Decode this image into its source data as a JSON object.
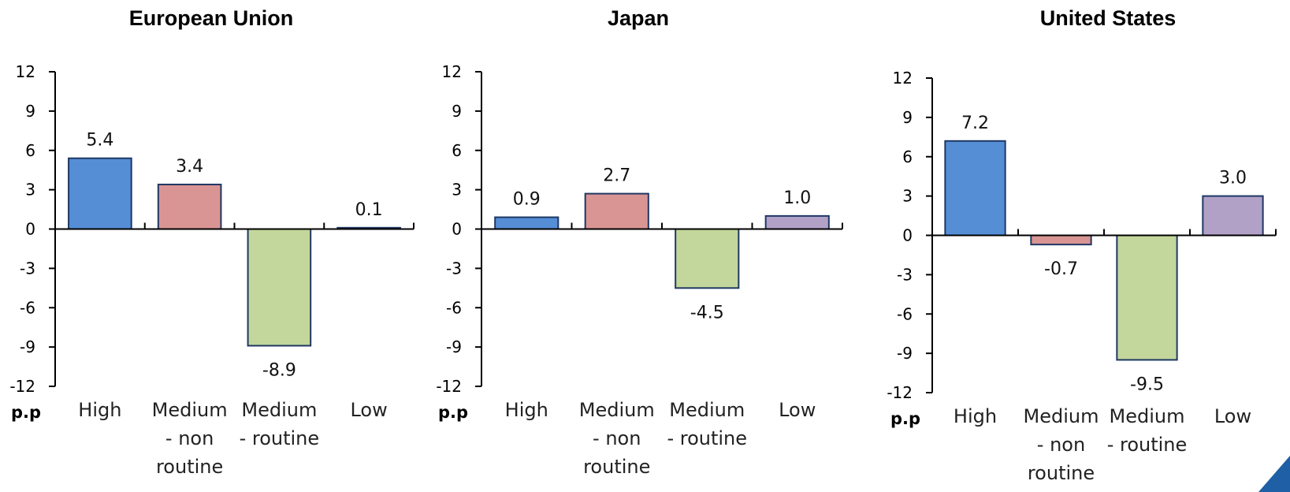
{
  "chart_data": [
    {
      "type": "bar",
      "title": "European Union",
      "unit_label": "p.p",
      "categories": [
        "High",
        "Medium - non routine",
        "Medium - routine",
        "Low"
      ],
      "category_lines": [
        [
          "High"
        ],
        [
          "Medium",
          "- non",
          "routine"
        ],
        [
          "Medium",
          "- routine"
        ],
        [
          "Low"
        ]
      ],
      "values": [
        5.4,
        3.4,
        -8.9,
        0.1
      ],
      "value_labels": [
        "5.4",
        "3.4",
        "-8.9",
        "0.1"
      ],
      "ylim": [
        -12,
        12
      ],
      "yticks": [
        12,
        9,
        6,
        3,
        0,
        -3,
        -6,
        -9,
        -12
      ],
      "grid": false,
      "legend": "none"
    },
    {
      "type": "bar",
      "title": "Japan",
      "unit_label": "p.p",
      "categories": [
        "High",
        "Medium - non routine",
        "Medium - routine",
        "Low"
      ],
      "category_lines": [
        [
          "High"
        ],
        [
          "Medium",
          "- non",
          "routine"
        ],
        [
          "Medium",
          "- routine"
        ],
        [
          "Low"
        ]
      ],
      "values": [
        0.9,
        2.7,
        -4.5,
        1.0
      ],
      "value_labels": [
        "0.9",
        "2.7",
        "-4.5",
        "1.0"
      ],
      "ylim": [
        -12,
        12
      ],
      "yticks": [
        12,
        9,
        6,
        3,
        0,
        -3,
        -6,
        -9,
        -12
      ],
      "grid": false,
      "legend": "none"
    },
    {
      "type": "bar",
      "title": "United States",
      "unit_label": "p.p",
      "categories": [
        "High",
        "Medium - non routine",
        "Medium - routine",
        "Low"
      ],
      "category_lines": [
        [
          "High"
        ],
        [
          "Medium",
          "- non",
          "routine"
        ],
        [
          "Medium",
          "- routine"
        ],
        [
          "Low"
        ]
      ],
      "values": [
        7.2,
        -0.7,
        -9.5,
        3.0
      ],
      "value_labels": [
        "7.2",
        "-0.7",
        "-9.5",
        "3.0"
      ],
      "ylim": [
        -12,
        12
      ],
      "yticks": [
        12,
        9,
        6,
        3,
        0,
        -3,
        -6,
        -9,
        -12
      ],
      "grid": false,
      "legend": "none"
    }
  ],
  "colors": {
    "high": "#558ed5",
    "medium_non_routine": "#d99594",
    "medium_routine": "#c3d69b",
    "low": "#b2a1c7",
    "bar_border": "#1f3864"
  }
}
